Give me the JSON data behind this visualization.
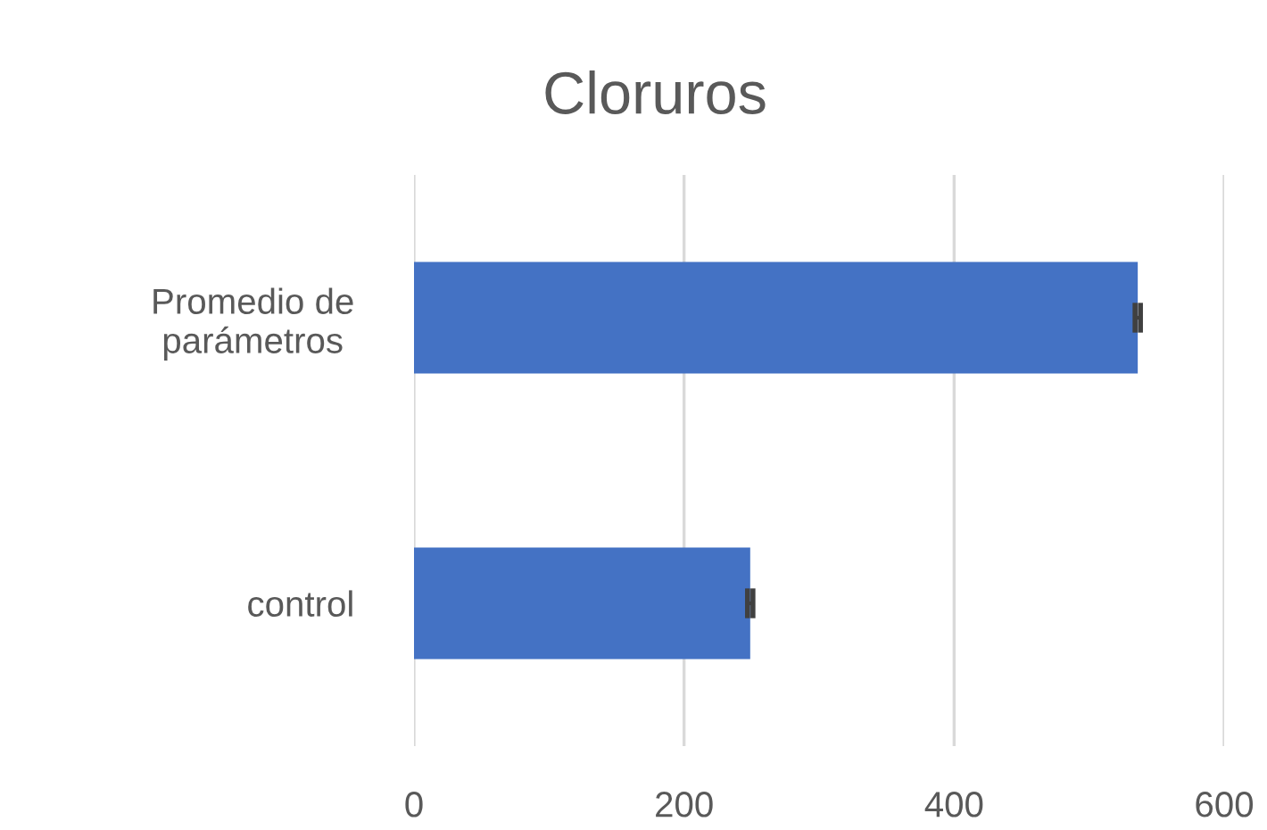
{
  "chart_data": {
    "type": "bar",
    "orientation": "horizontal",
    "title": "Cloruros",
    "categories": [
      "Promedio de parámetros",
      "control"
    ],
    "values": [
      536,
      249
    ],
    "errors": [
      2,
      2
    ],
    "color": "#4472c4",
    "xlim": [
      0,
      600
    ],
    "xticks": [
      0,
      200,
      400,
      600
    ],
    "grid": "x"
  }
}
